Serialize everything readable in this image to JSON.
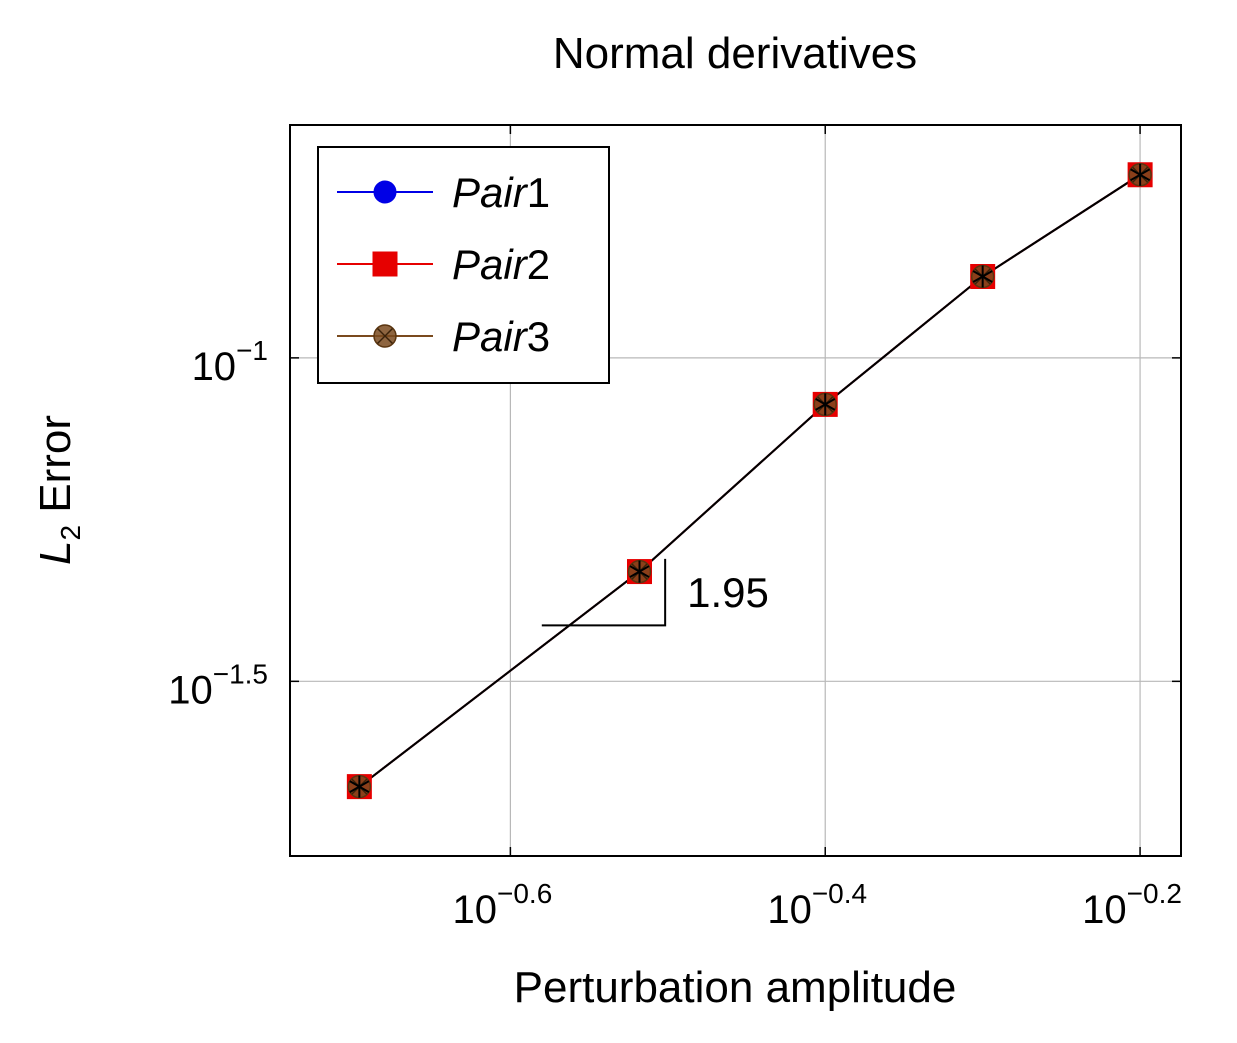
{
  "chart_data": {
    "type": "line",
    "title": "Normal derivatives",
    "xlabel": "Perturbation amplitude",
    "ylabel_main": "L",
    "ylabel_sub": "2",
    "ylabel_rest": " Error",
    "xscale": "log",
    "yscale": "log",
    "xlim_log10": [
      -0.74,
      -0.174
    ],
    "ylim_log10": [
      -1.77,
      -0.64
    ],
    "grid": true,
    "legend_position": "top-left",
    "x_ticks": [
      {
        "base": "10",
        "exp": "−0.6",
        "log10": -0.6
      },
      {
        "base": "10",
        "exp": "−0.4",
        "log10": -0.4
      },
      {
        "base": "10",
        "exp": "−0.2",
        "log10": -0.2
      }
    ],
    "y_ticks": [
      {
        "base": "10",
        "exp": "−1",
        "log10": -1.0
      },
      {
        "base": "10",
        "exp": "−1.5",
        "log10": -1.5
      }
    ],
    "x": [
      0.2014,
      0.3034,
      0.3981,
      0.5012,
      0.631
    ],
    "series": [
      {
        "name": "Pair",
        "name_num": "1",
        "color": "#0000e6",
        "marker": "circle",
        "y": [
          0.02174,
          0.04674,
          0.08474,
          0.1336,
          0.1919
        ]
      },
      {
        "name": "Pair",
        "name_num": "2",
        "color": "#e60000",
        "marker": "square",
        "y": [
          0.02174,
          0.04674,
          0.08474,
          0.1336,
          0.1919
        ]
      },
      {
        "name": "Pair",
        "name_num": "3",
        "color": "#7a4a1e",
        "marker": "otimes",
        "y": [
          0.02174,
          0.04674,
          0.08474,
          0.1336,
          0.1919
        ]
      }
    ],
    "reference_line": {
      "color": "#000000",
      "marker": "asterisk",
      "y": [
        0.02174,
        0.04674,
        0.08474,
        0.1336,
        0.1919
      ]
    },
    "slope_triangle": {
      "label": "1.95",
      "x_left": 0.263,
      "x_right": 0.315,
      "y_low": 0.0386,
      "y_high": 0.0489
    }
  }
}
